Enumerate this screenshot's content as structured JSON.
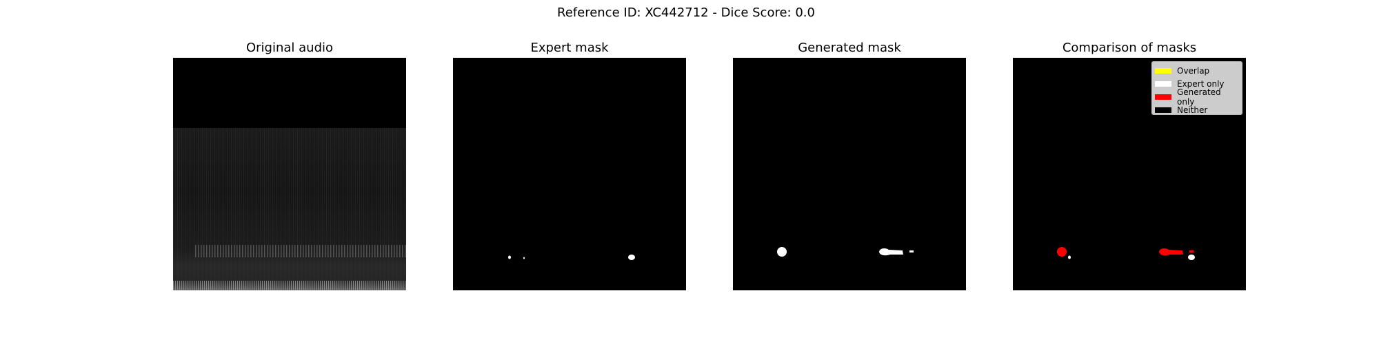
{
  "figure": {
    "title": "Reference ID: XC442712 - Dice Score: 0.0"
  },
  "panels": [
    {
      "title": "Original audio"
    },
    {
      "title": "Expert mask"
    },
    {
      "title": "Generated mask"
    },
    {
      "title": "Comparison of masks"
    }
  ],
  "legend": {
    "items": [
      {
        "label": "Overlap",
        "color": "#ffff00"
      },
      {
        "label": "Expert only",
        "color": "#ffffff"
      },
      {
        "label": "Generated only",
        "color": "#ff0000"
      },
      {
        "label": "Neither",
        "color": "#000000"
      }
    ]
  },
  "colors": {
    "background": "#000000",
    "overlap": "#ffff00",
    "expert_only": "#ffffff",
    "generated_only": "#ff0000"
  }
}
